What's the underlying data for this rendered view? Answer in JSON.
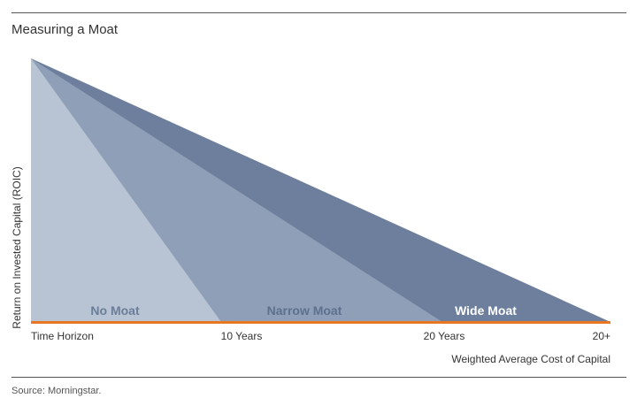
{
  "title": "Measuring a Moat",
  "source": "Source: Morningstar.",
  "diagram": {
    "y_axis_label": "Return on Invested Capital (ROIC)",
    "x_axis_label": "Weighted Average Cost of Capital",
    "x_ticks": [
      "Time Horizon",
      "10 Years",
      "20 Years",
      "20+"
    ],
    "regions": [
      {
        "label": "No Moat",
        "fill": "#b8c4d3",
        "label_color": "#6a7d99"
      },
      {
        "label": "Narrow Moat",
        "fill": "#8f9fb7",
        "label_color": "#5e7090"
      },
      {
        "label": "Wide Moat",
        "fill": "#6d7f9d",
        "label_color": "#ffffff"
      }
    ],
    "baseline_color": "#e87722"
  }
}
